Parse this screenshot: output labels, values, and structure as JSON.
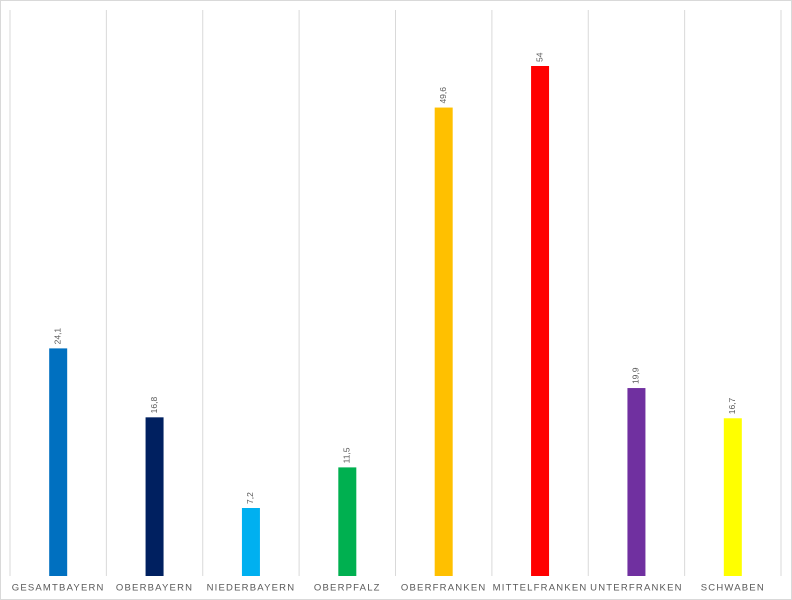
{
  "chart_data": {
    "type": "bar",
    "categories": [
      "GESAMTBAYERN",
      "OBERBAYERN",
      "NIEDERBAYERN",
      "OBERPFALZ",
      "OBERFRANKEN",
      "MITTELFRANKEN",
      "UNTERFRANKEN",
      "SCHWABEN"
    ],
    "values": [
      24.1,
      16.8,
      7.2,
      11.5,
      49.6,
      54,
      19.9,
      16.7
    ],
    "value_labels": [
      "24,1",
      "16,8",
      "7,2",
      "11,5",
      "49,6",
      "54",
      "19,9",
      "16,7"
    ],
    "colors": [
      "#0070c0",
      "#002060",
      "#00b0f0",
      "#00b050",
      "#ffc000",
      "#ff0000",
      "#7030a0",
      "#ffff00"
    ]
  }
}
